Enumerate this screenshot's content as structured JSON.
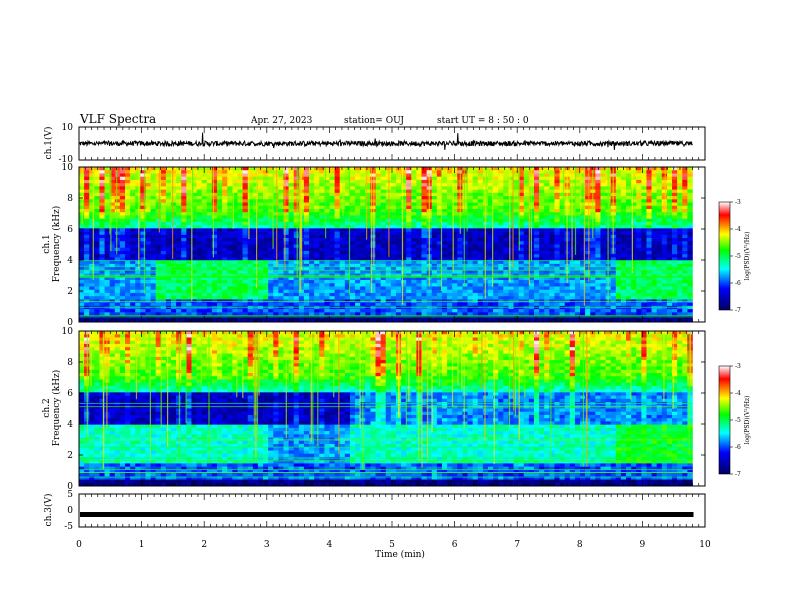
{
  "header": {
    "title": "VLF Spectra",
    "date": "Apr. 27, 2023",
    "station": "station= OUJ",
    "start_ut": "start  UT =   8  : 50 : 0"
  },
  "chart_data": [
    {
      "type": "line",
      "panel": "ch1-waveform",
      "ylabel": "ch.1(V)",
      "ylim": [
        -10,
        10
      ],
      "y_tick_labels": [
        "10",
        "-10"
      ],
      "xlim": [
        0,
        10
      ],
      "baseline": 0,
      "noise_amplitude": 1.5,
      "color": "#000000"
    },
    {
      "type": "heatmap",
      "panel": "ch1-spectrogram",
      "ylabel_line1": "ch.1",
      "ylabel_line2": "Frequency (kHz)",
      "ylim": [
        0,
        10
      ],
      "y_ticks": [
        0,
        2,
        4,
        6,
        8,
        10
      ],
      "y_tick_labels": [
        "0",
        "2",
        "4",
        "6",
        "8",
        "10"
      ],
      "xlim": [
        0,
        10
      ],
      "colorbar": {
        "label": "log(PSD)(V²/Hz)",
        "range": [
          -7,
          -3
        ],
        "ticks": [
          "-3",
          "-4",
          "-5",
          "-6",
          "-7"
        ],
        "colors": [
          "#ff0000",
          "#ffff00",
          "#00ff00",
          "#00ffff",
          "#0000ff",
          "#000060"
        ]
      }
    },
    {
      "type": "heatmap",
      "panel": "ch2-spectrogram",
      "ylabel_line1": "ch.2",
      "ylabel_line2": "Frequency (kHz)",
      "ylim": [
        0,
        10
      ],
      "y_ticks": [
        0,
        2,
        4,
        6,
        8,
        10
      ],
      "y_tick_labels": [
        "0",
        "2",
        "4",
        "6",
        "8",
        "10"
      ],
      "xlim": [
        0,
        10
      ],
      "colorbar": {
        "label": "log(PSD)(V²/Hz)",
        "range": [
          -7,
          -3
        ],
        "ticks": [
          "-3",
          "-4",
          "-5",
          "-6",
          "-7"
        ],
        "colors": [
          "#ff0000",
          "#ffff00",
          "#00ff00",
          "#00ffff",
          "#0000ff",
          "#000060"
        ]
      }
    },
    {
      "type": "line",
      "panel": "ch3-waveform",
      "ylabel": "ch.3(V)",
      "ylim": [
        -5,
        5
      ],
      "y_tick_labels": [
        "5",
        "0",
        "-5"
      ],
      "xlim": [
        0,
        10
      ],
      "baseline": -1.2,
      "color": "#000000"
    }
  ],
  "x_axis": {
    "label": "Time (min)",
    "ticks": [
      0,
      1,
      2,
      3,
      4,
      5,
      6,
      7,
      8,
      9,
      10
    ],
    "tick_labels": [
      "0",
      "1",
      "2",
      "3",
      "4",
      "5",
      "6",
      "7",
      "8",
      "9",
      "10"
    ]
  }
}
